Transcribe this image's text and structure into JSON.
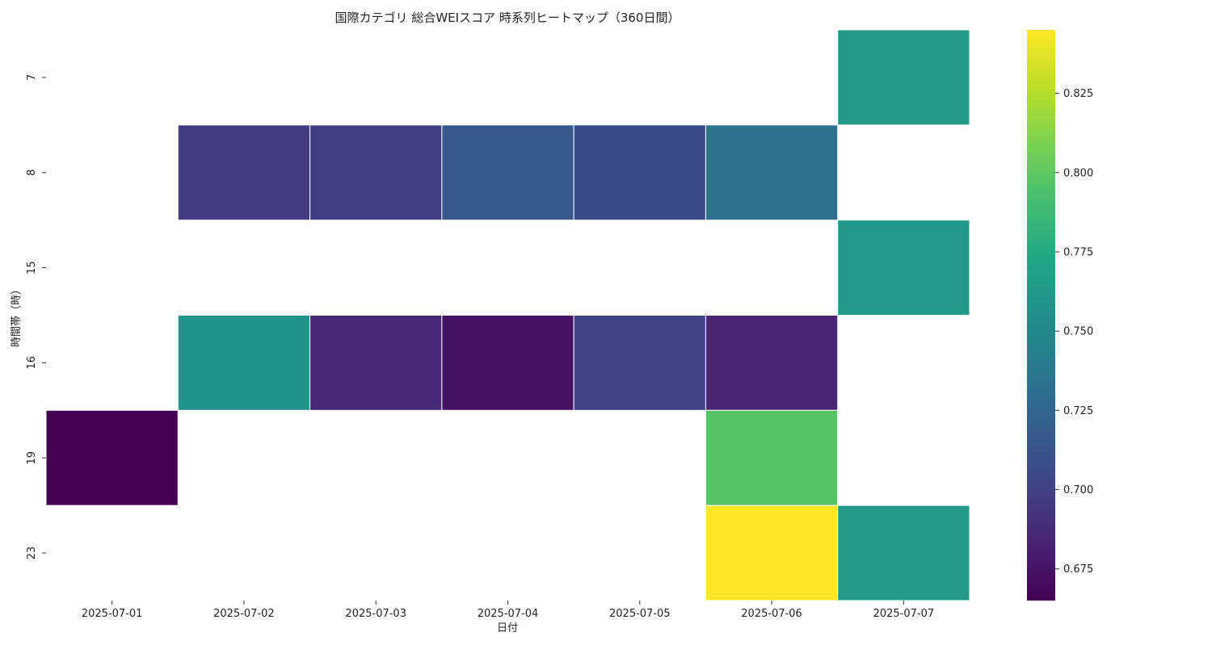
{
  "chart_data": {
    "type": "heatmap",
    "title": "国際カテゴリ 総合WEIスコア 時系列ヒートマップ（360日間）",
    "xlabel": "日付",
    "ylabel": "時間帯（時）",
    "x_categories": [
      "2025-07-01",
      "2025-07-02",
      "2025-07-03",
      "2025-07-04",
      "2025-07-05",
      "2025-07-06",
      "2025-07-07"
    ],
    "y_categories": [
      "7",
      "8",
      "15",
      "16",
      "19",
      "23"
    ],
    "values": [
      [
        null,
        null,
        null,
        null,
        null,
        null,
        0.763
      ],
      [
        null,
        0.697,
        0.698,
        0.716,
        0.706,
        0.733,
        null
      ],
      [
        null,
        null,
        null,
        null,
        null,
        null,
        0.762
      ],
      [
        null,
        0.757,
        0.686,
        0.674,
        0.702,
        0.684,
        null
      ],
      [
        0.665,
        null,
        null,
        null,
        null,
        0.797,
        null
      ],
      [
        null,
        null,
        null,
        null,
        null,
        0.845,
        0.763
      ]
    ],
    "colormap": "viridis",
    "colorbar": {
      "vmin": 0.665,
      "vmax": 0.845,
      "ticks": [
        0.675,
        0.7,
        0.725,
        0.75,
        0.775,
        0.8,
        0.825
      ],
      "tick_labels": [
        "0.675",
        "0.700",
        "0.725",
        "0.750",
        "0.775",
        "0.800",
        "0.825"
      ]
    },
    "missing_cells": "blank",
    "grid": false
  }
}
